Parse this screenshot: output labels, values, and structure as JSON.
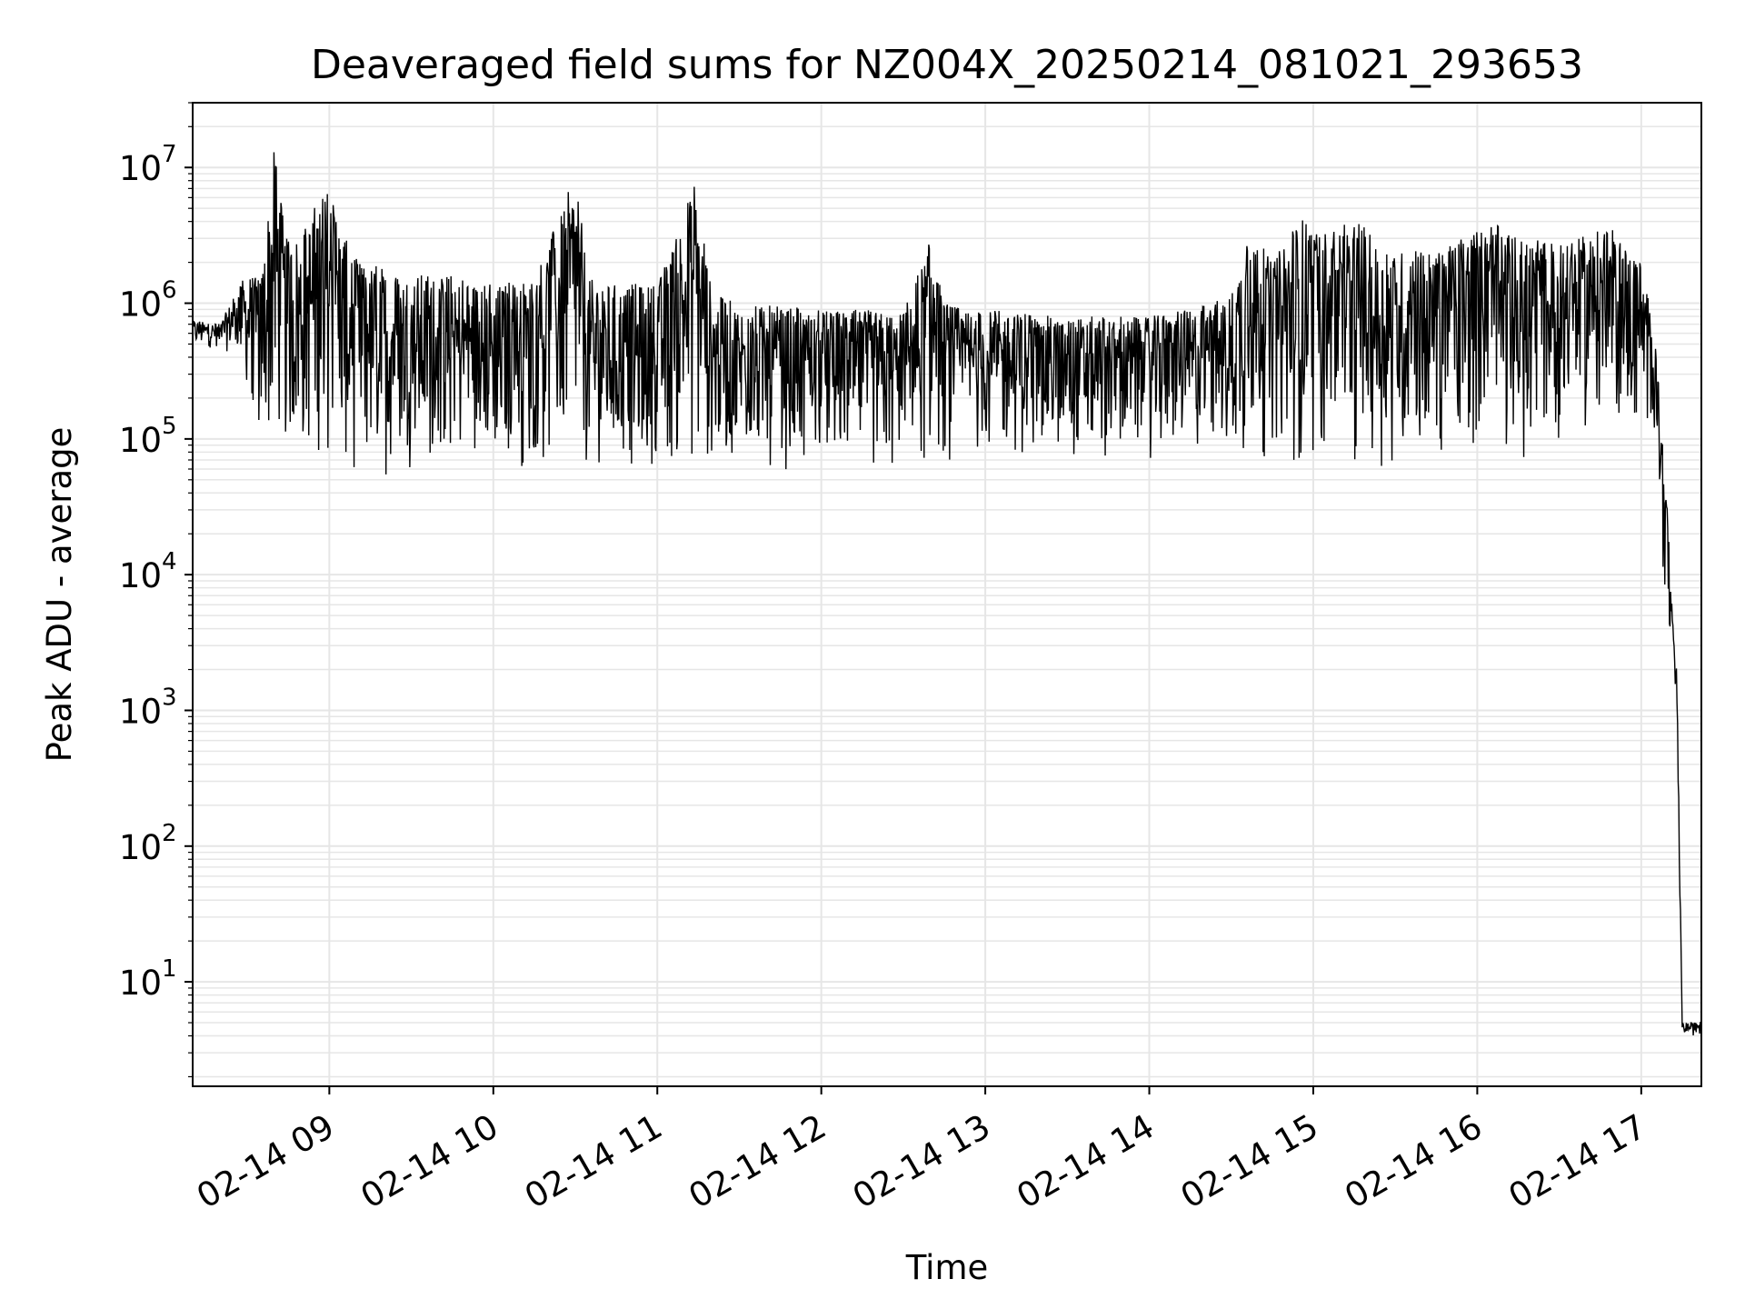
{
  "chart_data": {
    "type": "line",
    "title": "Deaveraged field sums for NZ004X_20250214_081021_293653",
    "xlabel": "Time",
    "ylabel": "Peak ADU - average",
    "yscale": "log",
    "grid": true,
    "line_color": "#000000",
    "grid_color": "#e6e6e6",
    "x_ticks": [
      "02-14 09",
      "02-14 10",
      "02-14 11",
      "02-14 12",
      "02-14 13",
      "02-14 14",
      "02-14 15",
      "02-14 16",
      "02-14 17"
    ],
    "y_ticks": [
      {
        "base": "10",
        "exp": "1"
      },
      {
        "base": "10",
        "exp": "2"
      },
      {
        "base": "10",
        "exp": "3"
      },
      {
        "base": "10",
        "exp": "4"
      },
      {
        "base": "10",
        "exp": "5"
      },
      {
        "base": "10",
        "exp": "6"
      },
      {
        "base": "10",
        "exp": "7"
      }
    ],
    "xlim": [
      "2025-02-14 08:10",
      "2025-02-14 17:22"
    ],
    "ylim": [
      1.7,
      30000000
    ],
    "series": [
      {
        "x": [
          "2025-02-14 08:10",
          "2025-02-14 08:20",
          "2025-02-14 08:28",
          "2025-02-14 08:30",
          "2025-02-14 08:35",
          "2025-02-14 08:40",
          "2025-02-14 08:44",
          "2025-02-14 08:50",
          "2025-02-14 09:00",
          "2025-02-14 09:08",
          "2025-02-14 09:15",
          "2025-02-14 09:30",
          "2025-02-14 09:45",
          "2025-02-14 10:00",
          "2025-02-14 10:15",
          "2025-02-14 10:30",
          "2025-02-14 10:35",
          "2025-02-14 10:45",
          "2025-02-14 11:00",
          "2025-02-14 11:14",
          "2025-02-14 11:20",
          "2025-02-14 11:30",
          "2025-02-14 11:45",
          "2025-02-14 12:00",
          "2025-02-14 12:15",
          "2025-02-14 12:30",
          "2025-02-14 12:40",
          "2025-02-14 12:45",
          "2025-02-14 13:00",
          "2025-02-14 13:15",
          "2025-02-14 13:30",
          "2025-02-14 13:45",
          "2025-02-14 14:00",
          "2025-02-14 14:15",
          "2025-02-14 14:30",
          "2025-02-14 14:36",
          "2025-02-14 14:45",
          "2025-02-14 14:55",
          "2025-02-14 15:05",
          "2025-02-14 15:15",
          "2025-02-14 15:25",
          "2025-02-14 15:35",
          "2025-02-14 15:45",
          "2025-02-14 15:55",
          "2025-02-14 16:05",
          "2025-02-14 16:15",
          "2025-02-14 16:25",
          "2025-02-14 16:35",
          "2025-02-14 16:45",
          "2025-02-14 16:50",
          "2025-02-14 17:00",
          "2025-02-14 17:05",
          "2025-02-14 17:08",
          "2025-02-14 17:10",
          "2025-02-14 17:12",
          "2025-02-14 17:13",
          "2025-02-14 17:15",
          "2025-02-14 17:16",
          "2025-02-14 17:22"
        ],
        "min": [
          450000,
          470000,
          350000,
          200000,
          90000,
          60000,
          70000,
          60000,
          70000,
          50000,
          45000,
          60000,
          55000,
          60000,
          55000,
          55000,
          50000,
          50000,
          55000,
          50000,
          60000,
          55000,
          50000,
          55000,
          50000,
          45000,
          55000,
          60000,
          70000,
          65000,
          70000,
          70000,
          65000,
          70000,
          65000,
          60000,
          70000,
          60000,
          60000,
          60000,
          60000,
          65000,
          65000,
          70000,
          90000,
          45000,
          80000,
          100000,
          120000,
          110000,
          100000,
          100000,
          8000,
          3000,
          1300,
          800,
          4,
          4,
          4
        ],
        "max": [
          750000,
          700000,
          1500000,
          1500000,
          1600000,
          15000000,
          3000000,
          3500000,
          8000000,
          2200000,
          2000000,
          1700000,
          1600000,
          1400000,
          1500000,
          9000000,
          1500000,
          1400000,
          1400000,
          8000000,
          1200000,
          1000000,
          950000,
          900000,
          900000,
          850000,
          3000000,
          1000000,
          900000,
          850000,
          800000,
          800000,
          800000,
          900000,
          1200000,
          4000000,
          2000000,
          4500000,
          3500000,
          4500000,
          2500000,
          2500000,
          2500000,
          3500000,
          4000000,
          3000000,
          3000000,
          3000000,
          3500000,
          3500000,
          2000000,
          600000,
          100000,
          20000,
          3000,
          2000,
          5,
          5,
          5
        ]
      }
    ]
  }
}
